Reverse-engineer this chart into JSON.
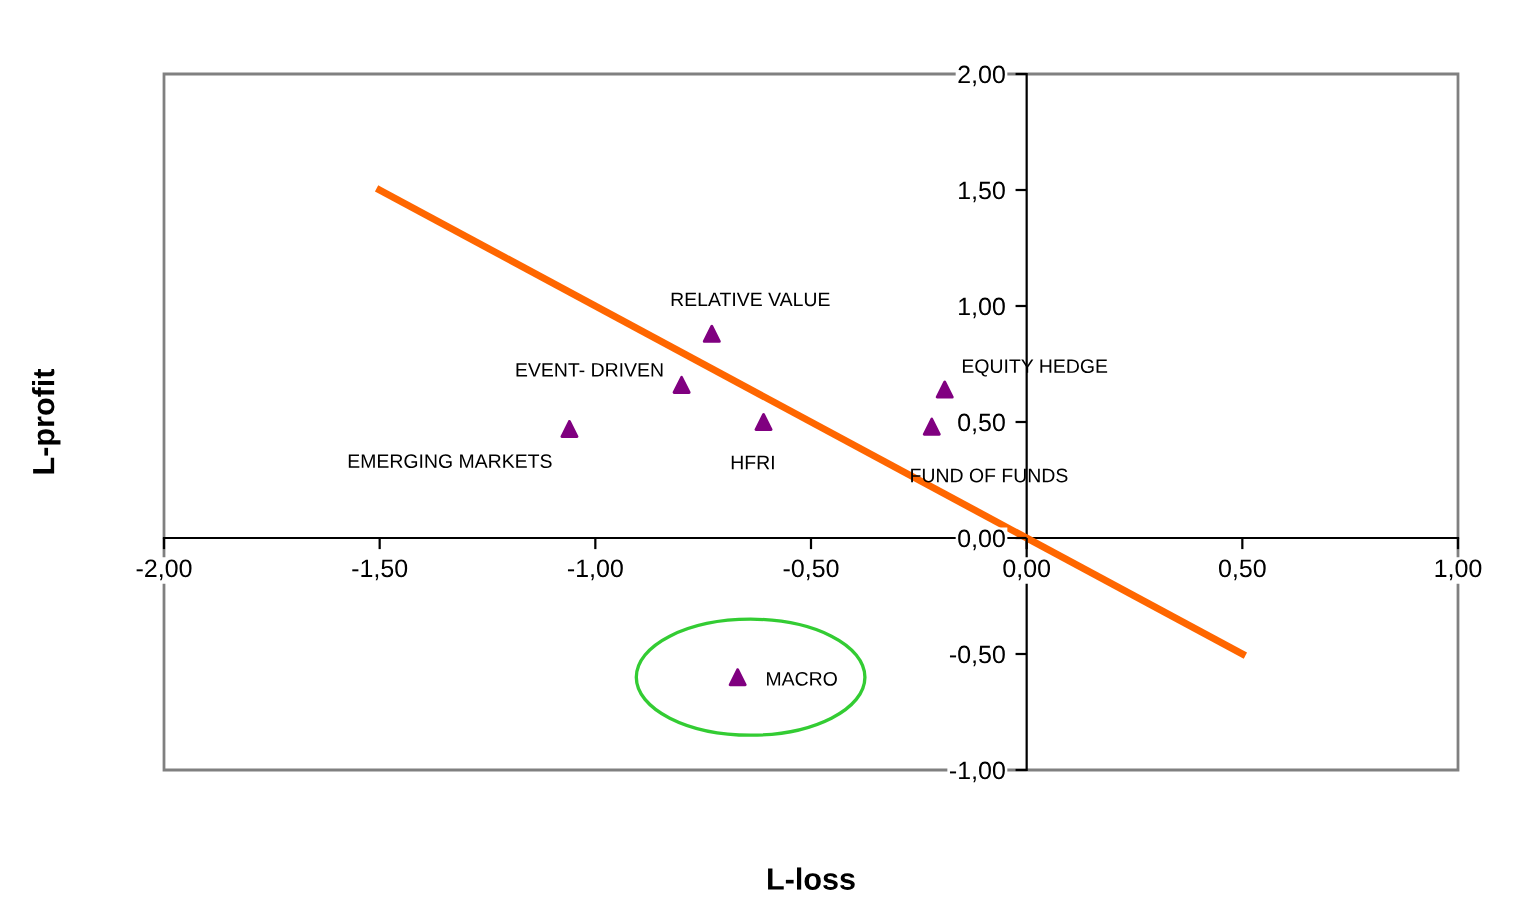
{
  "chart_data": {
    "type": "scatter",
    "xlabel": "L-loss",
    "ylabel": "L-profit",
    "xlim": [
      -2,
      1
    ],
    "ylim": [
      -1,
      2
    ],
    "xticks": [
      {
        "value": -2,
        "label": "-2,00"
      },
      {
        "value": -1.5,
        "label": "-1,50"
      },
      {
        "value": -1,
        "label": "-1,00"
      },
      {
        "value": -0.5,
        "label": "-0,50"
      },
      {
        "value": 0,
        "label": "0,00"
      },
      {
        "value": 0.5,
        "label": "0,50"
      },
      {
        "value": 1,
        "label": "1,00"
      }
    ],
    "yticks": [
      {
        "value": -1,
        "label": "-1,00"
      },
      {
        "value": -0.5,
        "label": "-0,50"
      },
      {
        "value": 0,
        "label": "0,00"
      },
      {
        "value": 0.5,
        "label": "0,50"
      },
      {
        "value": 1,
        "label": "1,00"
      },
      {
        "value": 1.5,
        "label": "1,50"
      },
      {
        "value": 2,
        "label": "2,00"
      }
    ],
    "grid": false,
    "legend": false,
    "series": [
      {
        "marker": "triangle",
        "color": "#800080",
        "x": [
          -0.73,
          -0.8,
          -1.06,
          -0.61,
          -0.19,
          -0.22,
          -0.67
        ],
        "values": [
          0.88,
          0.66,
          0.47,
          0.5,
          0.64,
          0.48,
          -0.6
        ]
      },
      {
        "type": "line",
        "color": "#ff6600",
        "x": [
          -1.5,
          0.5
        ],
        "values": [
          1.5,
          -0.5
        ]
      }
    ],
    "annotations": [
      {
        "text": "RELATIVE VALUE",
        "x": -0.73,
        "y": 0.88
      },
      {
        "text": "EVENT- DRIVEN",
        "x": -0.8,
        "y": 0.66
      },
      {
        "text": "EMERGING MARKETS",
        "x": -1.06,
        "y": 0.47
      },
      {
        "text": "HFRI",
        "x": -0.61,
        "y": 0.5
      },
      {
        "text": "EQUITY HEDGE",
        "x": -0.19,
        "y": 0.64
      },
      {
        "text": "FUND OF FUNDS",
        "x": -0.22,
        "y": 0.48
      },
      {
        "text": "MACRO",
        "x": -0.67,
        "y": -0.6
      }
    ]
  }
}
